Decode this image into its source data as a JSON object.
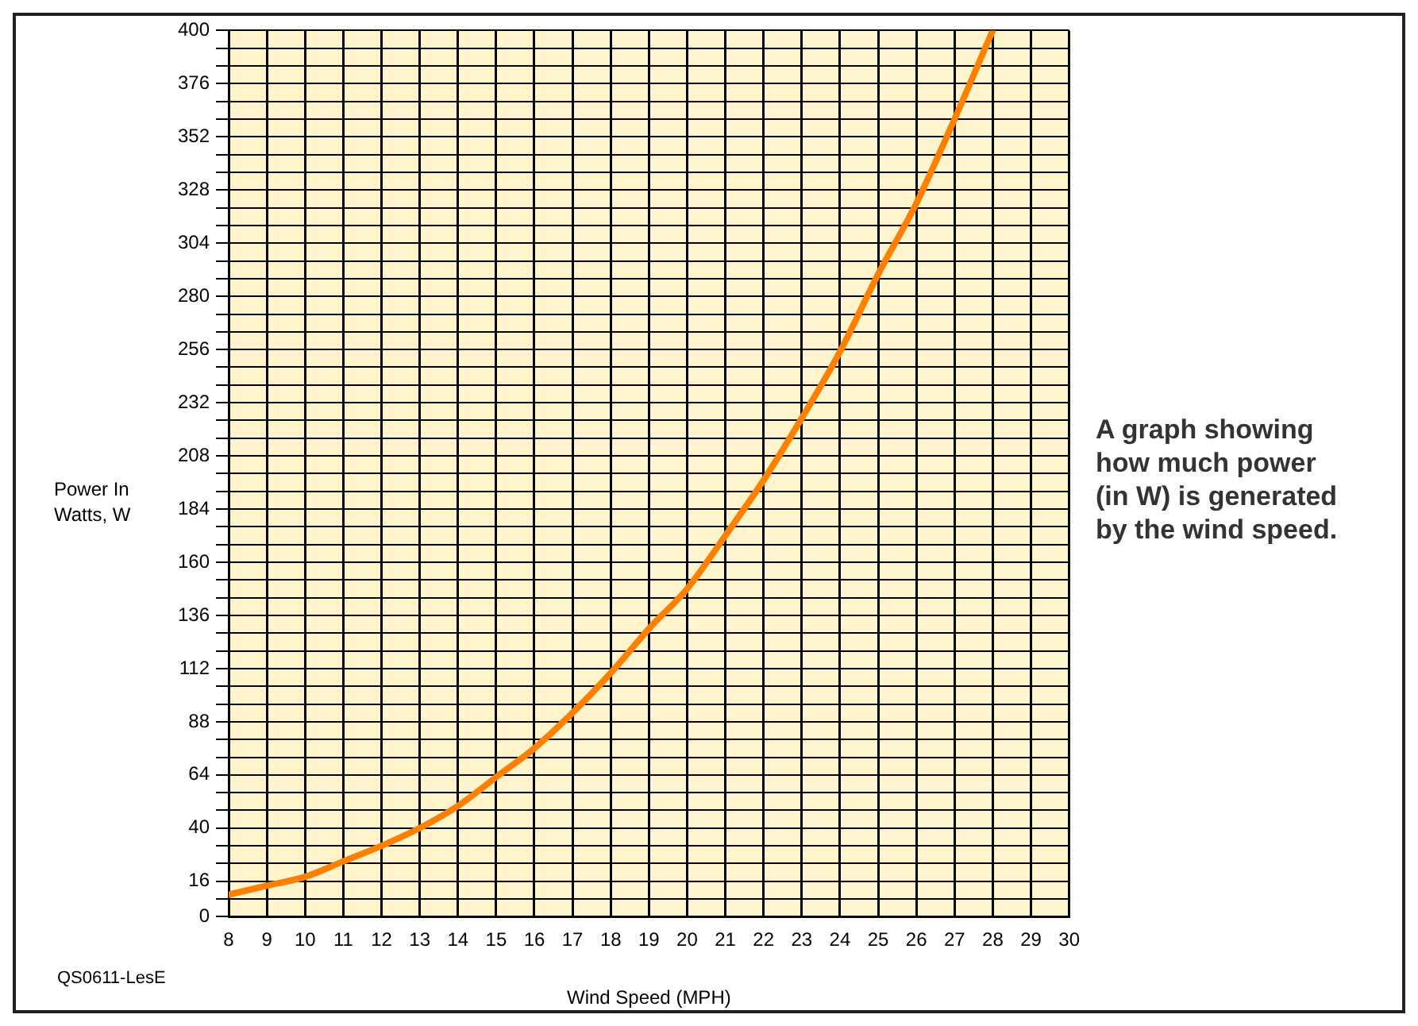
{
  "chart_data": {
    "type": "line",
    "xlabel": "Wind Speed (MPH)",
    "ylabel": "Power In Watts, W",
    "annotations": [
      "A graph showing how much power (in W) is generated by the wind speed.",
      "QS0611-LesE"
    ],
    "x": [
      8,
      9,
      10,
      11,
      12,
      13,
      14,
      15,
      16,
      17,
      18,
      19,
      20,
      21,
      22,
      23,
      24,
      25,
      26,
      27,
      28
    ],
    "series": [
      {
        "color": "#ff8000",
        "values": [
          10,
          14,
          18,
          25,
          32,
          40,
          50,
          63,
          76,
          92,
          110,
          130,
          148,
          172,
          197,
          225,
          255,
          290,
          322,
          360,
          400
        ]
      }
    ],
    "xlim": [
      8,
      30
    ],
    "xticks": [
      8,
      9,
      10,
      11,
      12,
      13,
      14,
      15,
      16,
      17,
      18,
      19,
      20,
      21,
      22,
      23,
      24,
      25,
      26,
      27,
      28,
      29,
      30
    ],
    "ylim": [
      0,
      400
    ],
    "yticks": [
      0,
      {
        "value": 8,
        "label": null
      },
      16,
      {
        "value": 24,
        "label": null
      },
      {
        "value": 32,
        "label": null
      },
      40,
      {
        "value": 48,
        "label": null
      },
      {
        "value": 56,
        "label": null
      },
      64,
      {
        "value": 72,
        "label": null
      },
      {
        "value": 80,
        "label": null
      },
      88,
      {
        "value": 96,
        "label": null
      },
      {
        "value": 104,
        "label": null
      },
      112,
      {
        "value": 120,
        "label": null
      },
      {
        "value": 128,
        "label": null
      },
      136,
      {
        "value": 144,
        "label": null
      },
      {
        "value": 152,
        "label": null
      },
      160,
      {
        "value": 168,
        "label": null
      },
      {
        "value": 176,
        "label": null
      },
      184,
      {
        "value": 192,
        "label": null
      },
      {
        "value": 200,
        "label": null
      },
      208,
      {
        "value": 216,
        "label": null
      },
      {
        "value": 224,
        "label": null
      },
      232,
      {
        "value": 240,
        "label": null
      },
      {
        "value": 248,
        "label": null
      },
      256,
      {
        "value": 264,
        "label": null
      },
      {
        "value": 272,
        "label": null
      },
      280,
      {
        "value": 288,
        "label": null
      },
      {
        "value": 296,
        "label": null
      },
      304,
      {
        "value": 312,
        "label": null
      },
      {
        "value": 320,
        "label": null
      },
      328,
      {
        "value": 336,
        "label": null
      },
      {
        "value": 344,
        "label": null
      },
      352,
      {
        "value": 360,
        "label": null
      },
      {
        "value": 368,
        "label": null
      },
      376,
      {
        "value": 384,
        "label": null
      },
      {
        "value": 392,
        "label": null
      },
      400
    ],
    "grid": true,
    "legend": false,
    "marker": "none",
    "line_style": "solid"
  }
}
